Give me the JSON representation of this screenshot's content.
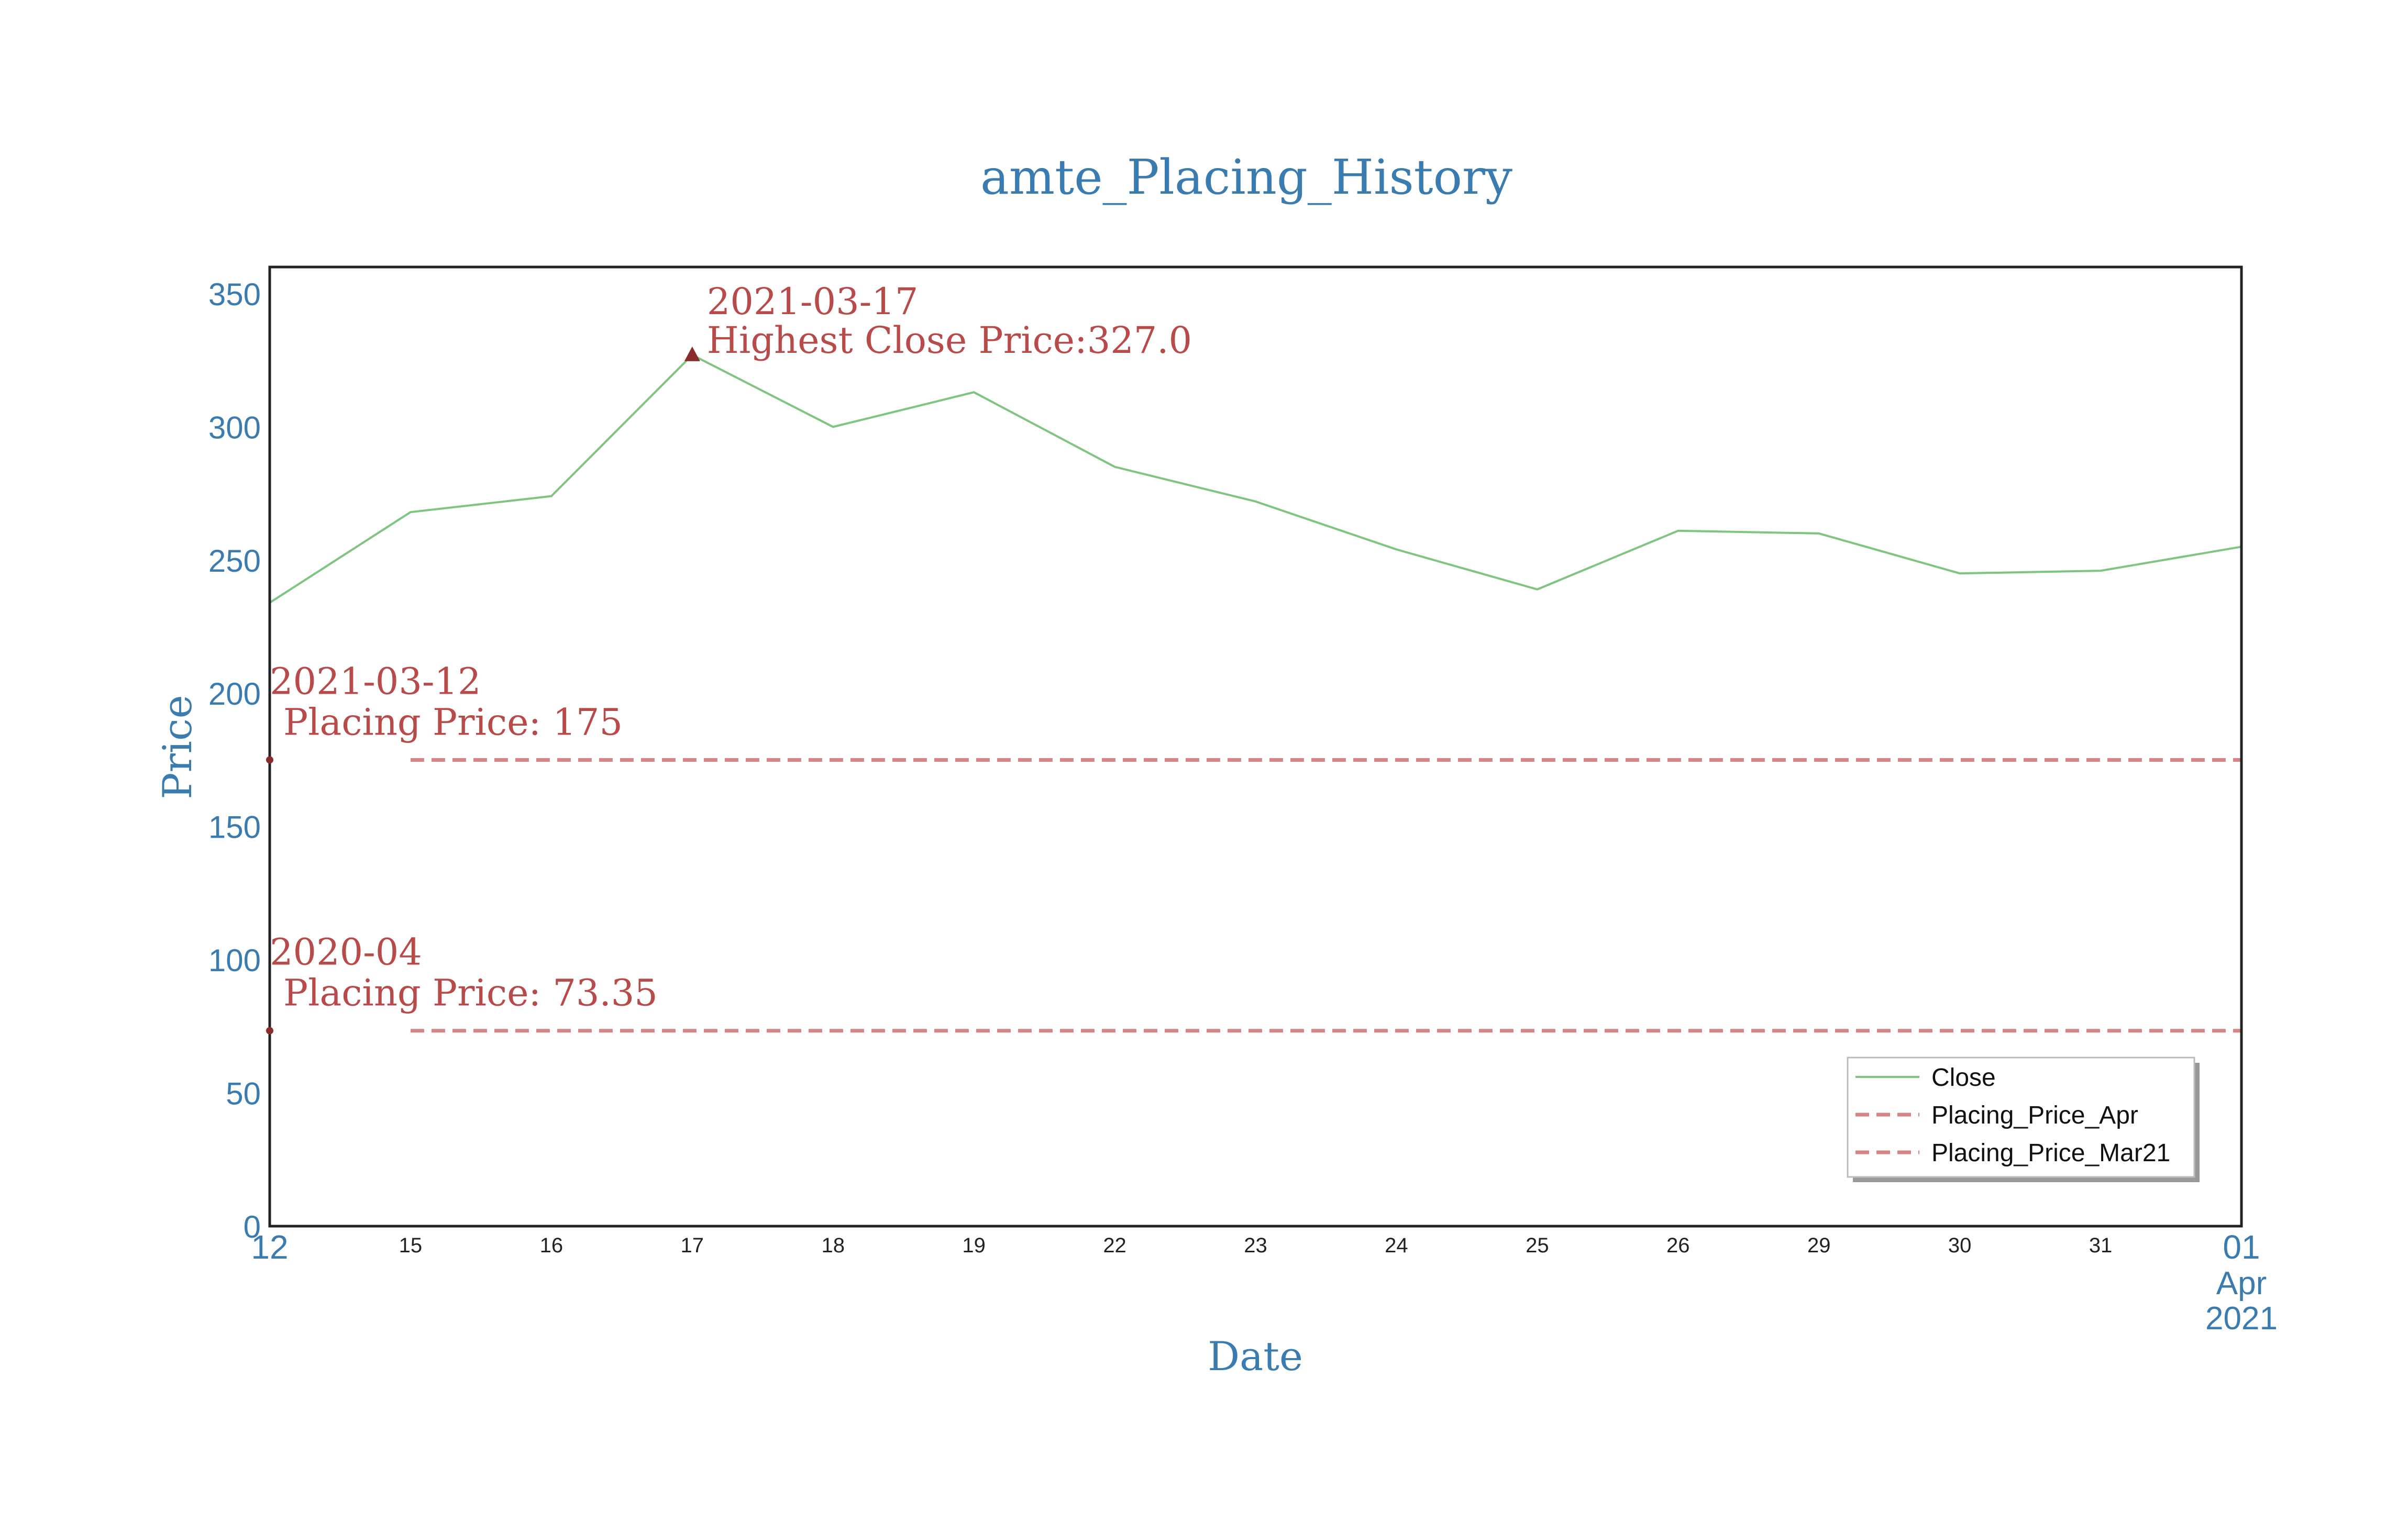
{
  "chart_data": {
    "type": "line",
    "title": "amte_Placing_History",
    "xlabel": "Date",
    "ylabel": "Price",
    "ylim": [
      0,
      360
    ],
    "yticks": [
      0,
      50,
      100,
      150,
      200,
      250,
      300,
      350
    ],
    "x": [
      "2021-03-12",
      "2021-03-15",
      "2021-03-16",
      "2021-03-17",
      "2021-03-18",
      "2021-03-19",
      "2021-03-22",
      "2021-03-23",
      "2021-03-24",
      "2021-03-25",
      "2021-03-26",
      "2021-03-29",
      "2021-03-30",
      "2021-03-31",
      "2021-04-01"
    ],
    "xtick_labels": [
      "12",
      "15",
      "16",
      "17",
      "18",
      "19",
      "22",
      "23",
      "24",
      "25",
      "26",
      "29",
      "30",
      "31",
      "01"
    ],
    "xtick_last_extra": [
      "Apr",
      "2021"
    ],
    "series": [
      {
        "name": "Close",
        "color": "#7fc47f",
        "style": "solid",
        "values": [
          234,
          268,
          274,
          327,
          300,
          313,
          285,
          272,
          254,
          239,
          261,
          260,
          245,
          246,
          255
        ]
      },
      {
        "name": "Placing_Price_Apr",
        "color": "#d68383",
        "style": "dashed",
        "x_start": "2021-03-15",
        "x_end": "2021-04-01",
        "value": 175
      },
      {
        "name": "Placing_Price_Mar21",
        "color": "#d68383",
        "style": "dashed",
        "x_start": "2021-03-15",
        "x_end": "2021-04-01",
        "value": 73.35
      }
    ],
    "annotations": [
      {
        "x": "2021-03-17",
        "y": 327.0,
        "marker": "triangle",
        "lines": [
          "2021-03-17",
          "Highest Close Price:327.0"
        ]
      },
      {
        "x": "2021-03-12",
        "y": 175,
        "marker": "dot",
        "lines": [
          "2021-03-12",
          "Placing Price: 175"
        ]
      },
      {
        "x": "2021-03-12",
        "y": 73.35,
        "marker": "dot",
        "lines": [
          "2020-04",
          "Placing Price: 73.35"
        ]
      }
    ],
    "legend": {
      "position": "bottom-right",
      "entries": [
        "Close",
        "Placing_Price_Apr",
        "Placing_Price_Mar21"
      ]
    },
    "grid": false,
    "colors": {
      "title": "#3a7bb0",
      "annotation": "#b84a4a",
      "marker": "#8b2c2c"
    }
  }
}
